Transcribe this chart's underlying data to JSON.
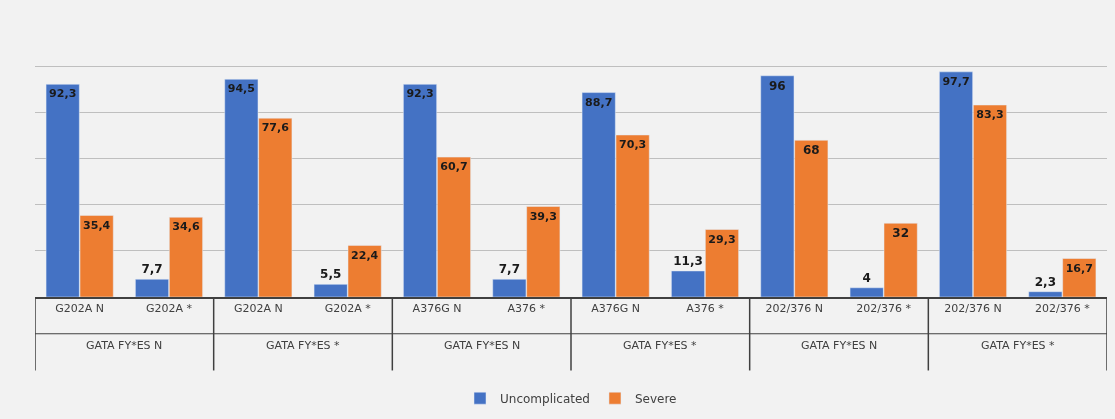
{
  "chart_data": {
    "type": "bar",
    "categories": [
      "G202A N",
      "G202A *",
      "G202A N",
      "G202A *",
      "A376G N",
      "A376 *",
      "A376G N",
      "A376 *",
      "202/376 N",
      "202/376 *",
      "202/376 N",
      "202/376 *"
    ],
    "series": [
      {
        "name": "Uncomplicated",
        "color": "#4472c4",
        "values": [
          92.3,
          7.7,
          94.5,
          5.5,
          92.3,
          7.7,
          88.7,
          11.3,
          96,
          4,
          97.7,
          2.3
        ],
        "value_labels": [
          "92,3",
          "7,7",
          "94,5",
          "5,5",
          "92,3",
          "7,7",
          "88,7",
          "11,3",
          "96",
          "4",
          "97,7",
          "2,3"
        ]
      },
      {
        "name": "Severe",
        "color": "#ed7d31",
        "values": [
          35.4,
          34.6,
          77.6,
          22.4,
          60.7,
          39.3,
          70.3,
          29.3,
          68,
          32,
          83.3,
          16.7
        ],
        "value_labels": [
          "35,4",
          "34,6",
          "77,6",
          "22,4",
          "60,7",
          "39,3",
          "70,3",
          "29,3",
          "68",
          "32",
          "83,3",
          "16,7"
        ]
      }
    ],
    "annotations": [
      "GATA FY*ES N",
      "GATA FY*ES *",
      "GATA FY*ES N",
      "GATA FY*ES *",
      "GATA FY*ES N",
      "GATA FY*ES *"
    ],
    "yticks": [
      {
        "value": 0,
        "label": null
      },
      {
        "value": 20,
        "label": null
      },
      {
        "value": 40,
        "label": null
      },
      {
        "value": 60,
        "label": null
      },
      {
        "value": 80,
        "label": null
      },
      {
        "value": 100,
        "label": null
      }
    ],
    "grid": "y",
    "legend": "bottom"
  }
}
